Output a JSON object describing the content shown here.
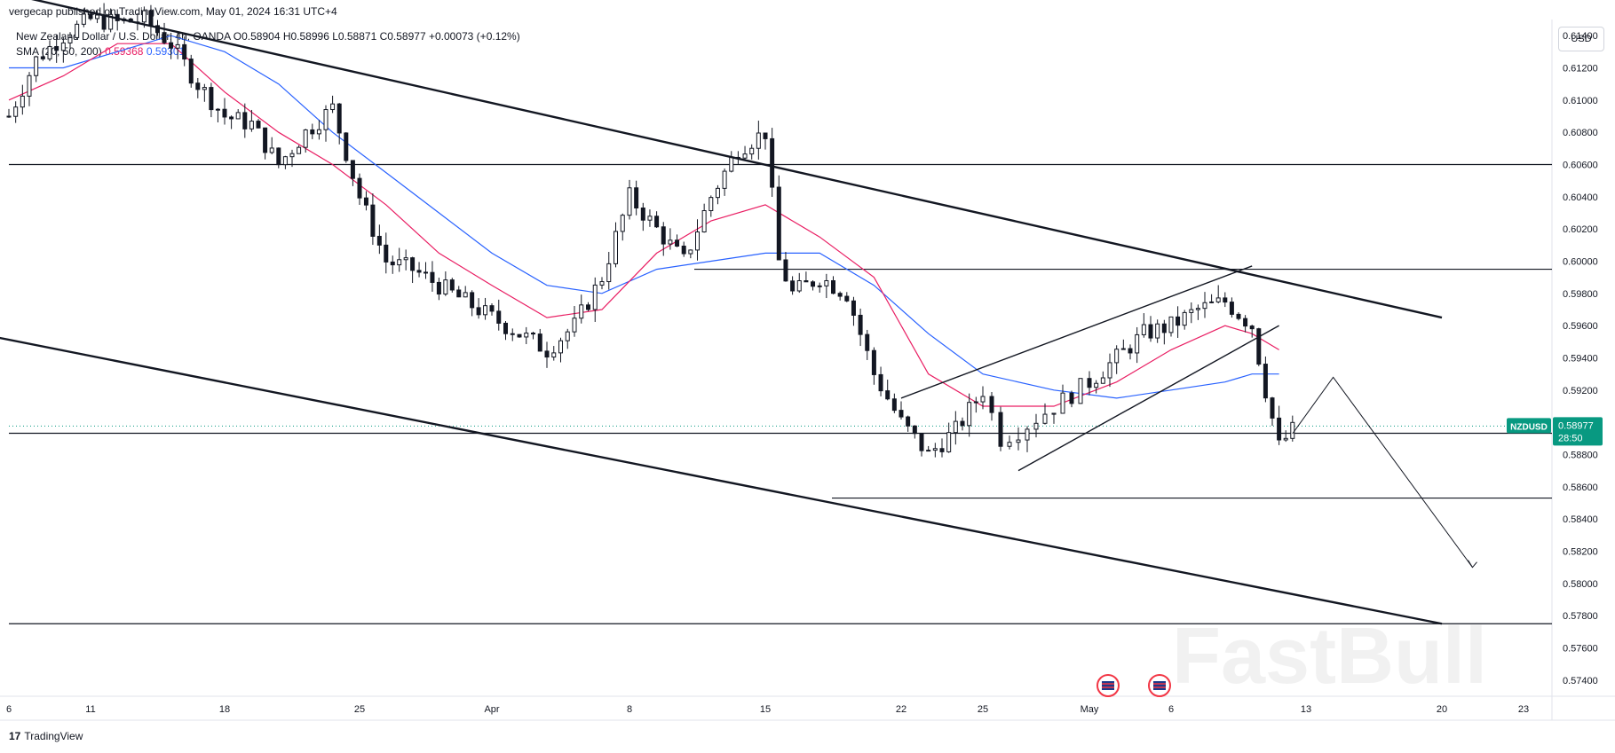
{
  "header": {
    "publisher": "vergecap published on TradingView.com, May 01, 2024 16:31 UTC+4",
    "symbol": "New Zealand Dollar / U.S. Dollar, 4h, OANDA",
    "ohlc": "O0.58904 H0.58996 L0.58871 C0.58977 +0.00073 (+0.12%)",
    "sma_label": "SMA (20, 50, 200)",
    "sma_20": "0.59368",
    "sma_50": "0.59301"
  },
  "currency_button": "USD",
  "footer": {
    "logo": "17",
    "brand": "TradingView"
  },
  "price_tag": {
    "symbol": "NZDUSD",
    "price": "0.58977",
    "countdown": "28:50"
  },
  "watermark": "FastBull",
  "colors": {
    "sma20": "#e91e63",
    "sma50": "#2962ff",
    "bull": "#131722",
    "bear": "#131722",
    "price_tag": "#089981"
  },
  "chart_data": {
    "type": "candlestick",
    "ylim": [
      0.573,
      0.615
    ],
    "y_ticks": [
      "0.61400",
      "0.61200",
      "0.61000",
      "0.60800",
      "0.60600",
      "0.60400",
      "0.60200",
      "0.60000",
      "0.59800",
      "0.59600",
      "0.59400",
      "0.59200",
      "0.59000",
      "0.58800",
      "0.58600",
      "0.58400",
      "0.58200",
      "0.58000",
      "0.57800",
      "0.57600",
      "0.57400"
    ],
    "x_ticks": [
      "6",
      "11",
      "18",
      "25",
      "Apr",
      "8",
      "15",
      "22",
      "25",
      "May",
      "6",
      "13",
      "20",
      "23"
    ],
    "x_range_days": [
      0,
      52
    ],
    "x_tick_days": [
      0,
      3,
      8,
      13,
      18,
      23,
      28,
      33,
      36,
      39,
      42,
      47,
      52,
      56
    ],
    "close_path": [
      [
        0.0,
        0.609
      ],
      [
        1.0,
        0.6125
      ],
      [
        2.0,
        0.614
      ],
      [
        3.0,
        0.615
      ],
      [
        4.0,
        0.6148
      ],
      [
        5.0,
        0.615
      ],
      [
        6.0,
        0.6135
      ],
      [
        7.0,
        0.611
      ],
      [
        8.0,
        0.609
      ],
      [
        9.0,
        0.6085
      ],
      [
        10.0,
        0.606
      ],
      [
        11.0,
        0.608
      ],
      [
        12.0,
        0.6095
      ],
      [
        13.0,
        0.604
      ],
      [
        14.0,
        0.6
      ],
      [
        15.0,
        0.5995
      ],
      [
        16.0,
        0.5985
      ],
      [
        17.0,
        0.5975
      ],
      [
        18.0,
        0.5965
      ],
      [
        19.0,
        0.5955
      ],
      [
        20.0,
        0.5945
      ],
      [
        21.0,
        0.596
      ],
      [
        22.0,
        0.599
      ],
      [
        23.0,
        0.604
      ],
      [
        24.0,
        0.602
      ],
      [
        25.0,
        0.6
      ],
      [
        26.0,
        0.604
      ],
      [
        27.0,
        0.607
      ],
      [
        28.0,
        0.608
      ],
      [
        28.5,
        0.6
      ],
      [
        29.0,
        0.598
      ],
      [
        30.0,
        0.599
      ],
      [
        31.0,
        0.598
      ],
      [
        32.0,
        0.593
      ],
      [
        33.0,
        0.59
      ],
      [
        34.0,
        0.588
      ],
      [
        35.0,
        0.5895
      ],
      [
        36.0,
        0.592
      ],
      [
        36.5,
        0.589
      ],
      [
        37.0,
        0.5895
      ],
      [
        38.0,
        0.591
      ],
      [
        39.0,
        0.5925
      ],
      [
        40.0,
        0.594
      ],
      [
        41.0,
        0.5955
      ],
      [
        42.0,
        0.596
      ],
      [
        43.0,
        0.597
      ],
      [
        44.0,
        0.5975
      ],
      [
        45.0,
        0.596
      ],
      [
        45.5,
        0.592
      ],
      [
        46.0,
        0.5885
      ],
      [
        46.5,
        0.5895
      ]
    ],
    "sma20_path": [
      [
        0.0,
        0.61
      ],
      [
        2.0,
        0.6115
      ],
      [
        4.0,
        0.6135
      ],
      [
        6.0,
        0.6135
      ],
      [
        8.0,
        0.6105
      ],
      [
        10.0,
        0.608
      ],
      [
        12.0,
        0.606
      ],
      [
        14.0,
        0.6035
      ],
      [
        16.0,
        0.6005
      ],
      [
        18.0,
        0.5985
      ],
      [
        20.0,
        0.5965
      ],
      [
        22.0,
        0.597
      ],
      [
        24.0,
        0.6005
      ],
      [
        26.0,
        0.6025
      ],
      [
        28.0,
        0.6035
      ],
      [
        30.0,
        0.6015
      ],
      [
        32.0,
        0.599
      ],
      [
        34.0,
        0.593
      ],
      [
        36.0,
        0.591
      ],
      [
        38.0,
        0.591
      ],
      [
        40.0,
        0.5925
      ],
      [
        42.0,
        0.5945
      ],
      [
        44.0,
        0.596
      ],
      [
        45.0,
        0.5955
      ],
      [
        46.0,
        0.5945
      ]
    ],
    "sma50_path": [
      [
        0.0,
        0.612
      ],
      [
        2.0,
        0.612
      ],
      [
        4.0,
        0.613
      ],
      [
        6.0,
        0.614
      ],
      [
        8.0,
        0.613
      ],
      [
        10.0,
        0.611
      ],
      [
        12.0,
        0.608
      ],
      [
        14.0,
        0.6055
      ],
      [
        16.0,
        0.603
      ],
      [
        18.0,
        0.6005
      ],
      [
        20.0,
        0.5985
      ],
      [
        22.0,
        0.598
      ],
      [
        24.0,
        0.5995
      ],
      [
        26.0,
        0.6
      ],
      [
        28.0,
        0.6005
      ],
      [
        30.0,
        0.6005
      ],
      [
        32.0,
        0.5985
      ],
      [
        34.0,
        0.5955
      ],
      [
        36.0,
        0.593
      ],
      [
        38.0,
        0.592
      ],
      [
        40.0,
        0.5915
      ],
      [
        42.0,
        0.592
      ],
      [
        44.0,
        0.5925
      ],
      [
        45.0,
        0.593
      ],
      [
        46.0,
        0.593
      ]
    ],
    "horizontal_levels": [
      0.606,
      0.5995,
      0.58932,
      0.5853,
      0.5775
    ],
    "channel_upper": [
      [
        -5.0,
        0.6185
      ],
      [
        52.0,
        0.5965
      ]
    ],
    "channel_lower": [
      [
        -5.0,
        0.5968
      ],
      [
        52.0,
        0.5775
      ]
    ],
    "wedge_upper": [
      [
        33.0,
        0.5915
      ],
      [
        45.0,
        0.5997
      ]
    ],
    "wedge_lower": [
      [
        37.0,
        0.587
      ],
      [
        46.0,
        0.596
      ]
    ],
    "forecast_path": [
      [
        46.5,
        0.5893
      ],
      [
        48.0,
        0.5928
      ],
      [
        53.5,
        0.581
      ]
    ]
  }
}
